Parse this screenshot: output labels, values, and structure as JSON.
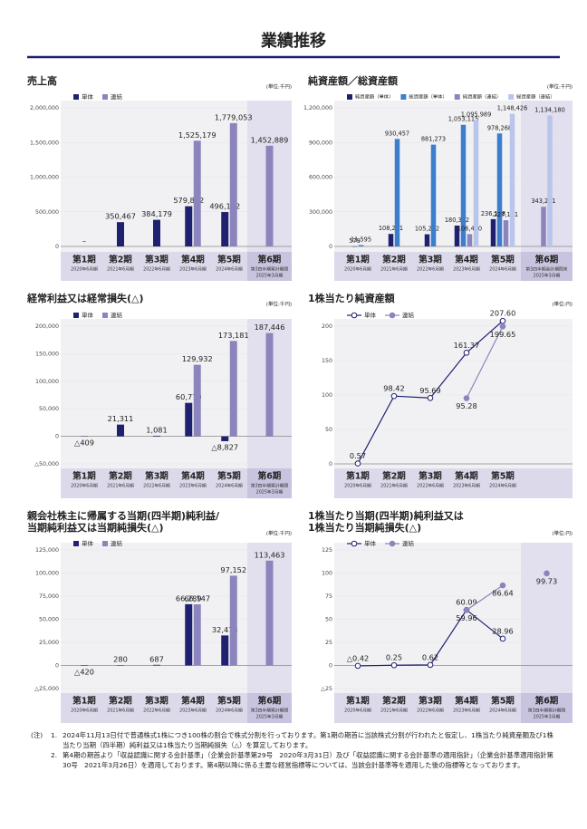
{
  "header": {
    "title": "業績推移"
  },
  "chart_data": [
    {
      "type": "bar",
      "title": "売上高",
      "unit": "(単位:千円)",
      "grid": true,
      "highlight_last": true,
      "categories": [
        "第1期",
        "第2期",
        "第3期",
        "第4期",
        "第5期",
        "第6期"
      ],
      "sublabels": [
        [
          "2020年6月期"
        ],
        [
          "2021年6月期"
        ],
        [
          "2022年6月期"
        ],
        [
          "2023年6月期"
        ],
        [
          "2024年6月期"
        ],
        [
          "第3四半期累計期間",
          "2025年3月期"
        ]
      ],
      "series": [
        {
          "name": "単体",
          "color": "#1f2070",
          "values": [
            null,
            350467,
            384179,
            579812,
            496192,
            null
          ],
          "value_labels": [
            "–",
            "350,467",
            "384,179",
            "579,812",
            "496,192",
            null
          ]
        },
        {
          "name": "連結",
          "color": "#8c85bd",
          "values": [
            null,
            null,
            null,
            1525179,
            1779053,
            1452889
          ],
          "value_labels": [
            null,
            null,
            null,
            "1,525,179",
            "1,779,053",
            "1,452,889"
          ]
        }
      ],
      "ylim": [
        0,
        2000000
      ],
      "yticks": [
        0,
        {
          "value": 500000,
          "label": "500,000"
        },
        {
          "value": 1000000,
          "label": "1,000,000"
        },
        {
          "value": 1500000,
          "label": "1,500,000"
        },
        {
          "value": 2000000,
          "label": "2,000,000"
        }
      ]
    },
    {
      "type": "bar",
      "title": "純資産額／総資産額",
      "unit": "(単位:千円)",
      "grid": true,
      "highlight_last": true,
      "categories": [
        "第1期",
        "第2期",
        "第3期",
        "第4期",
        "第5期",
        "第6期"
      ],
      "sublabels": [
        [
          "2020年6月期"
        ],
        [
          "2021年6月期"
        ],
        [
          "2022年6月期"
        ],
        [
          "2023年6月期"
        ],
        [
          "2024年6月期"
        ],
        [
          "第3四半期会計期間末",
          "2025年3月期"
        ]
      ],
      "series": [
        {
          "name": "純資産額（単体）",
          "color": "#1f2070",
          "values": [
            579,
            108271,
            105262,
            180362,
            236188,
            null
          ],
          "value_labels": [
            "579",
            "108,271",
            "105,262",
            "180,362",
            "236,188",
            null
          ]
        },
        {
          "name": "総資産額（単体）",
          "color": "#3b7fcc",
          "values": [
            11595,
            930457,
            881273,
            1053115,
            978268,
            null
          ],
          "value_labels": [
            "11,595",
            "930,457",
            "881,273",
            "1,053,115",
            "978,268",
            null
          ]
        },
        {
          "name": "純資産額（連結）",
          "color": "#8c85bd",
          "values": [
            null,
            null,
            null,
            106490,
            227141,
            343251
          ],
          "value_labels": [
            null,
            null,
            null,
            "106,490",
            "227,141",
            "343,251"
          ]
        },
        {
          "name": "総資産額（連結）",
          "color": "#b7c6ea",
          "values": [
            null,
            null,
            null,
            1095989,
            1148426,
            1134180
          ],
          "value_labels": [
            null,
            null,
            null,
            "1,095,989",
            "1,148,426",
            "1,134,180"
          ]
        }
      ],
      "ylim": [
        0,
        1200000
      ],
      "yticks": [
        0,
        {
          "value": 300000,
          "label": "300,000"
        },
        {
          "value": 600000,
          "label": "600,000"
        },
        {
          "value": 900000,
          "label": "900,000"
        },
        {
          "value": 1200000,
          "label": "1,200,000"
        }
      ]
    },
    {
      "type": "bar",
      "title": "経常利益又は経常損失(△)",
      "unit": "(単位:千円)",
      "grid": true,
      "highlight_last": true,
      "categories": [
        "第1期",
        "第2期",
        "第3期",
        "第4期",
        "第5期",
        "第6期"
      ],
      "sublabels": [
        [
          "2020年6月期"
        ],
        [
          "2021年6月期"
        ],
        [
          "2022年6月期"
        ],
        [
          "2023年6月期"
        ],
        [
          "2024年6月期"
        ],
        [
          "第3四半期累計期間",
          "2025年3月期"
        ]
      ],
      "series": [
        {
          "name": "単体",
          "color": "#1f2070",
          "values": [
            -409,
            21311,
            1081,
            60770,
            -8827,
            null
          ],
          "value_labels": [
            "△409",
            "21,311",
            "1,081",
            "60,770",
            "△8,827",
            null
          ]
        },
        {
          "name": "連結",
          "color": "#8c85bd",
          "values": [
            null,
            null,
            null,
            129932,
            173181,
            187446
          ],
          "value_labels": [
            null,
            null,
            null,
            "129,932",
            "173,181",
            "187,446"
          ]
        }
      ],
      "ylim": [
        -50000,
        200000
      ],
      "yticks": [
        {
          "value": -50000,
          "label": "△50,000"
        },
        0,
        {
          "value": 50000,
          "label": "50,000"
        },
        {
          "value": 100000,
          "label": "100,000"
        },
        {
          "value": 150000,
          "label": "150,000"
        },
        {
          "value": 200000,
          "label": "200,000"
        }
      ]
    },
    {
      "type": "line",
      "title": "1株当たり純資産額",
      "unit": "(単位:円)",
      "grid": true,
      "highlight_last": false,
      "categories": [
        "第1期",
        "第2期",
        "第3期",
        "第4期",
        "第5期"
      ],
      "sublabels": [
        [
          "2020年6月期"
        ],
        [
          "2021年6月期"
        ],
        [
          "2022年6月期"
        ],
        [
          "2023年6月期"
        ],
        [
          "2024年6月期"
        ]
      ],
      "series": [
        {
          "name": "単体",
          "color": "#1f2070",
          "values": [
            0.57,
            98.42,
            95.69,
            161.37,
            207.6
          ],
          "value_labels": [
            "0.57",
            "98.42",
            "95.69",
            "161.37",
            "207.60"
          ]
        },
        {
          "name": "連結",
          "color": "#8c85bd",
          "values": [
            null,
            null,
            null,
            95.28,
            199.65
          ],
          "value_labels": [
            null,
            null,
            null,
            "95.28",
            "199.65"
          ]
        }
      ],
      "ylim": [
        0,
        200
      ],
      "yticks": [
        0,
        50,
        100,
        150,
        200
      ]
    },
    {
      "type": "bar",
      "title": [
        "親会社株主に帰属する当期(四半期)純利益/",
        "当期純利益又は当期純損失(△)"
      ],
      "unit": "(単位:千円)",
      "grid": true,
      "highlight_last": true,
      "categories": [
        "第1期",
        "第2期",
        "第3期",
        "第4期",
        "第5期",
        "第6期"
      ],
      "sublabels": [
        [
          "2020年6月期"
        ],
        [
          "2021年6月期"
        ],
        [
          "2022年6月期"
        ],
        [
          "2023年6月期"
        ],
        [
          "2024年6月期"
        ],
        [
          "第3四半期累計期間",
          "2025年3月期"
        ]
      ],
      "series": [
        {
          "name": "単体",
          "color": "#1f2070",
          "values": [
            -420,
            280,
            687,
            66289,
            32478,
            null
          ],
          "value_labels": [
            "△420",
            "280",
            "687",
            "66,289",
            "32,478",
            null
          ]
        },
        {
          "name": "連結",
          "color": "#8c85bd",
          "values": [
            null,
            null,
            null,
            66147,
            97152,
            113463
          ],
          "value_labels": [
            null,
            null,
            null,
            "66,147",
            "97,152",
            "113,463"
          ]
        }
      ],
      "ylim": [
        -25000,
        125000
      ],
      "yticks": [
        {
          "value": -25000,
          "label": "△25,000"
        },
        0,
        {
          "value": 25000,
          "label": "25,000"
        },
        {
          "value": 50000,
          "label": "50,000"
        },
        {
          "value": 75000,
          "label": "75,000"
        },
        {
          "value": 100000,
          "label": "100,000"
        },
        {
          "value": 125000,
          "label": "125,000"
        }
      ]
    },
    {
      "type": "line",
      "title": [
        "1株当たり当期(四半期)純利益又は",
        "1株当たり当期純損失(△)"
      ],
      "unit": "(単位:円)",
      "grid": true,
      "highlight_last": true,
      "categories": [
        "第1期",
        "第2期",
        "第3期",
        "第4期",
        "第5期",
        "第6期"
      ],
      "sublabels": [
        [
          "2020年6月期"
        ],
        [
          "2021年6月期"
        ],
        [
          "2022年6月期"
        ],
        [
          "2023年6月期"
        ],
        [
          "2024年6月期"
        ],
        [
          "第3四半期累計期間",
          "2025年3月期"
        ]
      ],
      "series": [
        {
          "name": "単体",
          "color": "#1f2070",
          "values": [
            -0.42,
            0.25,
            0.62,
            60.09,
            28.96,
            null
          ],
          "value_labels": [
            "△0.42",
            "0.25",
            "0.62",
            "60.09",
            "28.96",
            null
          ]
        },
        {
          "name": "連結",
          "color": "#8c85bd",
          "values": [
            null,
            null,
            null,
            59.96,
            86.64,
            99.73
          ],
          "value_labels": [
            null,
            null,
            null,
            "59.96",
            "86.64",
            "99.73"
          ]
        }
      ],
      "ylim": [
        -25,
        125
      ],
      "yticks": [
        {
          "value": -25,
          "label": "△25"
        },
        0,
        25,
        50,
        75,
        100,
        125
      ]
    }
  ],
  "notes": {
    "label": "(注)",
    "items": [
      {
        "num": "1.",
        "text": "2024年11月13日付で普通株式1株につき100株の割合で株式分割を行っております。第1期の期首に当該株式分割が行われたと仮定し、1株当たり純資産額及び1株当たり当期（四半期）純利益又は1株当たり当期純損失（△）を算定しております。"
      },
      {
        "num": "2.",
        "text": "第4期の期首より「収益認識に関する会計基準」（企業会計基準第29号　2020年3月31日）及び「収益認識に関する会計基準の適用指針」（企業会計基準適用指針第30号　2021年3月26日）を適用しております。第4期以降に係る主要な経営指標等については、当該会計基準等を適用した後の指標等となっております。"
      }
    ]
  }
}
